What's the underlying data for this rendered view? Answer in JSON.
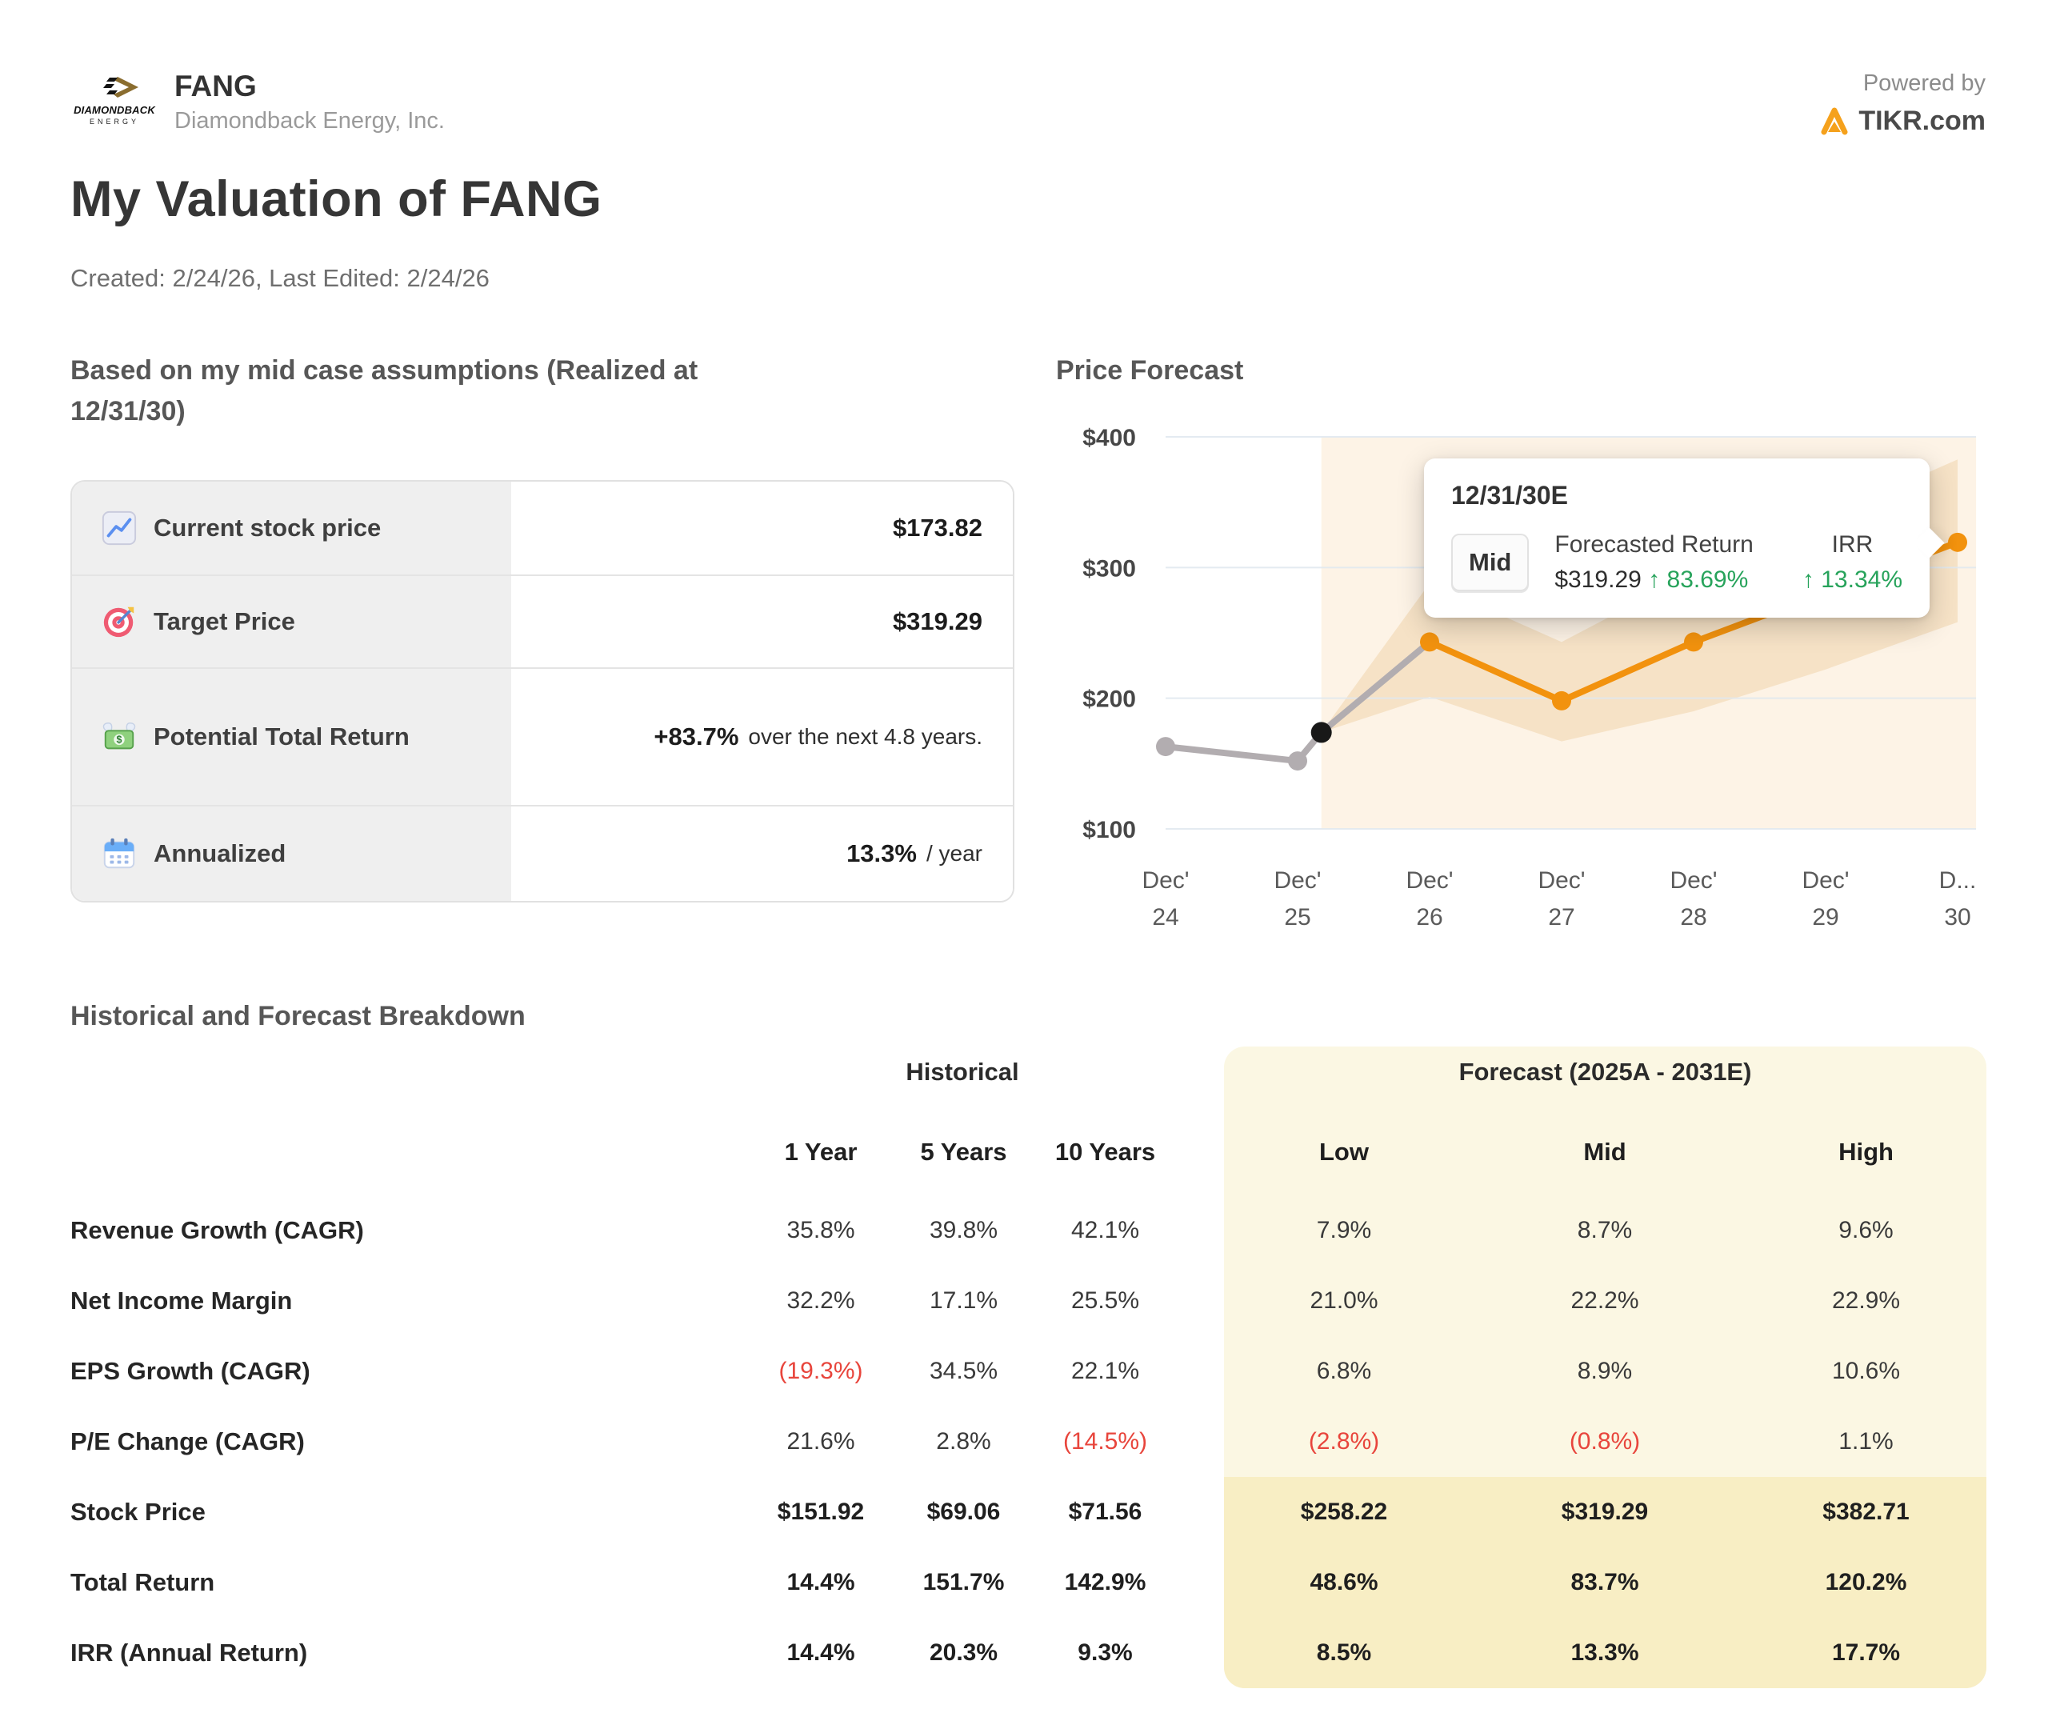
{
  "header": {
    "ticker": "FANG",
    "company": "Diamondback Energy, Inc.",
    "logo": {
      "line1": "DIAMONDBACK",
      "line2": "ENERGY"
    },
    "powered_by": "Powered by",
    "brand": "TIKR.com",
    "title": "My Valuation of FANG",
    "meta": "Created: 2/24/26, Last Edited: 2/24/26"
  },
  "assumptions": {
    "heading": "Based on my mid case assumptions (Realized at 12/31/30)",
    "rows": [
      {
        "icon": "chart-increasing-icon",
        "label": "Current stock price",
        "value": "$173.82",
        "suffix": ""
      },
      {
        "icon": "target-icon",
        "label": "Target Price",
        "value": "$319.29",
        "suffix": ""
      },
      {
        "icon": "money-with-wings-icon",
        "label": "Potential Total Return",
        "value": "+83.7%",
        "suffix": "over the next 4.8 years."
      },
      {
        "icon": "calendar-icon",
        "label": "Annualized",
        "value": "13.3%",
        "suffix": "/ year"
      }
    ]
  },
  "forecast_chart": {
    "heading": "Price Forecast",
    "tooltip": {
      "title": "12/31/30E",
      "badge": "Mid",
      "col1_header": "Forecasted Return",
      "col1_value": "$319.29",
      "col1_change": "↑ 83.69%",
      "col2_header": "IRR",
      "col2_value": "↑ 13.34%"
    }
  },
  "chart_data": {
    "type": "line",
    "title": "Price Forecast",
    "x_labels": [
      [
        "Dec'",
        "24"
      ],
      [
        "Dec'",
        "25"
      ],
      [
        "Dec'",
        "26"
      ],
      [
        "Dec'",
        "27"
      ],
      [
        "Dec'",
        "28"
      ],
      [
        "Dec'",
        "29"
      ],
      [
        "D...",
        "30"
      ]
    ],
    "y_ticks": [
      "$400",
      "$300",
      "$200",
      "$100"
    ],
    "y_tick_values": [
      400,
      300,
      200,
      100
    ],
    "ylim": [
      100,
      400
    ],
    "grid_on": true,
    "grid_color": "#dfe7ef",
    "forecast_region": {
      "from_x": 1.18,
      "to_x": 6.14,
      "color": "#fdf3e6"
    },
    "band": {
      "x": [
        1.18,
        2,
        3,
        4,
        5,
        6
      ],
      "low": [
        173.82,
        201,
        167,
        190,
        222,
        258.22
      ],
      "high": [
        173.82,
        288,
        243,
        296,
        338,
        382.71
      ],
      "color": "#f6e2c6"
    },
    "series": [
      {
        "name": "historical",
        "color": "#b2adb0",
        "x": [
          0,
          1,
          1.18,
          2
        ],
        "values": [
          163,
          152,
          173.82,
          243
        ],
        "dot_indices": [
          0,
          1
        ]
      },
      {
        "name": "mid-forecast",
        "color": "#f2920e",
        "x": [
          2,
          3,
          4,
          5,
          6
        ],
        "values": [
          243,
          198,
          243,
          281,
          319.29
        ],
        "dot_indices": [
          0,
          1,
          2,
          3,
          4
        ]
      }
    ],
    "current_point": {
      "x": 1.18,
      "value": 173.82,
      "color": "#181818"
    }
  },
  "breakdown": {
    "heading": "Historical and Forecast Breakdown",
    "historical_group": "Historical",
    "forecast_group": "Forecast (2025A - 2031E)",
    "historical_cols": [
      "1 Year",
      "5 Years",
      "10 Years"
    ],
    "forecast_cols": [
      "Low",
      "Mid",
      "High"
    ],
    "rows": [
      {
        "label": "Revenue Growth (CAGR)",
        "historical": [
          "35.8%",
          "39.8%",
          "42.1%"
        ],
        "forecast": [
          "7.9%",
          "8.7%",
          "9.6%"
        ],
        "bold": false
      },
      {
        "label": "Net Income Margin",
        "historical": [
          "32.2%",
          "17.1%",
          "25.5%"
        ],
        "forecast": [
          "21.0%",
          "22.2%",
          "22.9%"
        ],
        "bold": false
      },
      {
        "label": "EPS Growth (CAGR)",
        "historical": [
          "(19.3%)",
          "34.5%",
          "22.1%"
        ],
        "forecast": [
          "6.8%",
          "8.9%",
          "10.6%"
        ],
        "bold": false
      },
      {
        "label": "P/E Change (CAGR)",
        "historical": [
          "21.6%",
          "2.8%",
          "(14.5%)"
        ],
        "forecast": [
          "(2.8%)",
          "(0.8%)",
          "1.1%"
        ],
        "bold": false
      },
      {
        "label": "Stock Price",
        "historical": [
          "$151.92",
          "$69.06",
          "$71.56"
        ],
        "forecast": [
          "$258.22",
          "$319.29",
          "$382.71"
        ],
        "bold": true
      },
      {
        "label": "Total Return",
        "historical": [
          "14.4%",
          "151.7%",
          "142.9%"
        ],
        "forecast": [
          "48.6%",
          "83.7%",
          "120.2%"
        ],
        "bold": true
      },
      {
        "label": "IRR (Annual Return)",
        "historical": [
          "14.4%",
          "20.3%",
          "9.3%"
        ],
        "forecast": [
          "8.5%",
          "13.3%",
          "17.7%"
        ],
        "bold": true
      }
    ],
    "colors": {
      "card_bg": "#fbf7e3",
      "card_band_bg": "#f8eec4",
      "negative": "#e8453c"
    }
  }
}
